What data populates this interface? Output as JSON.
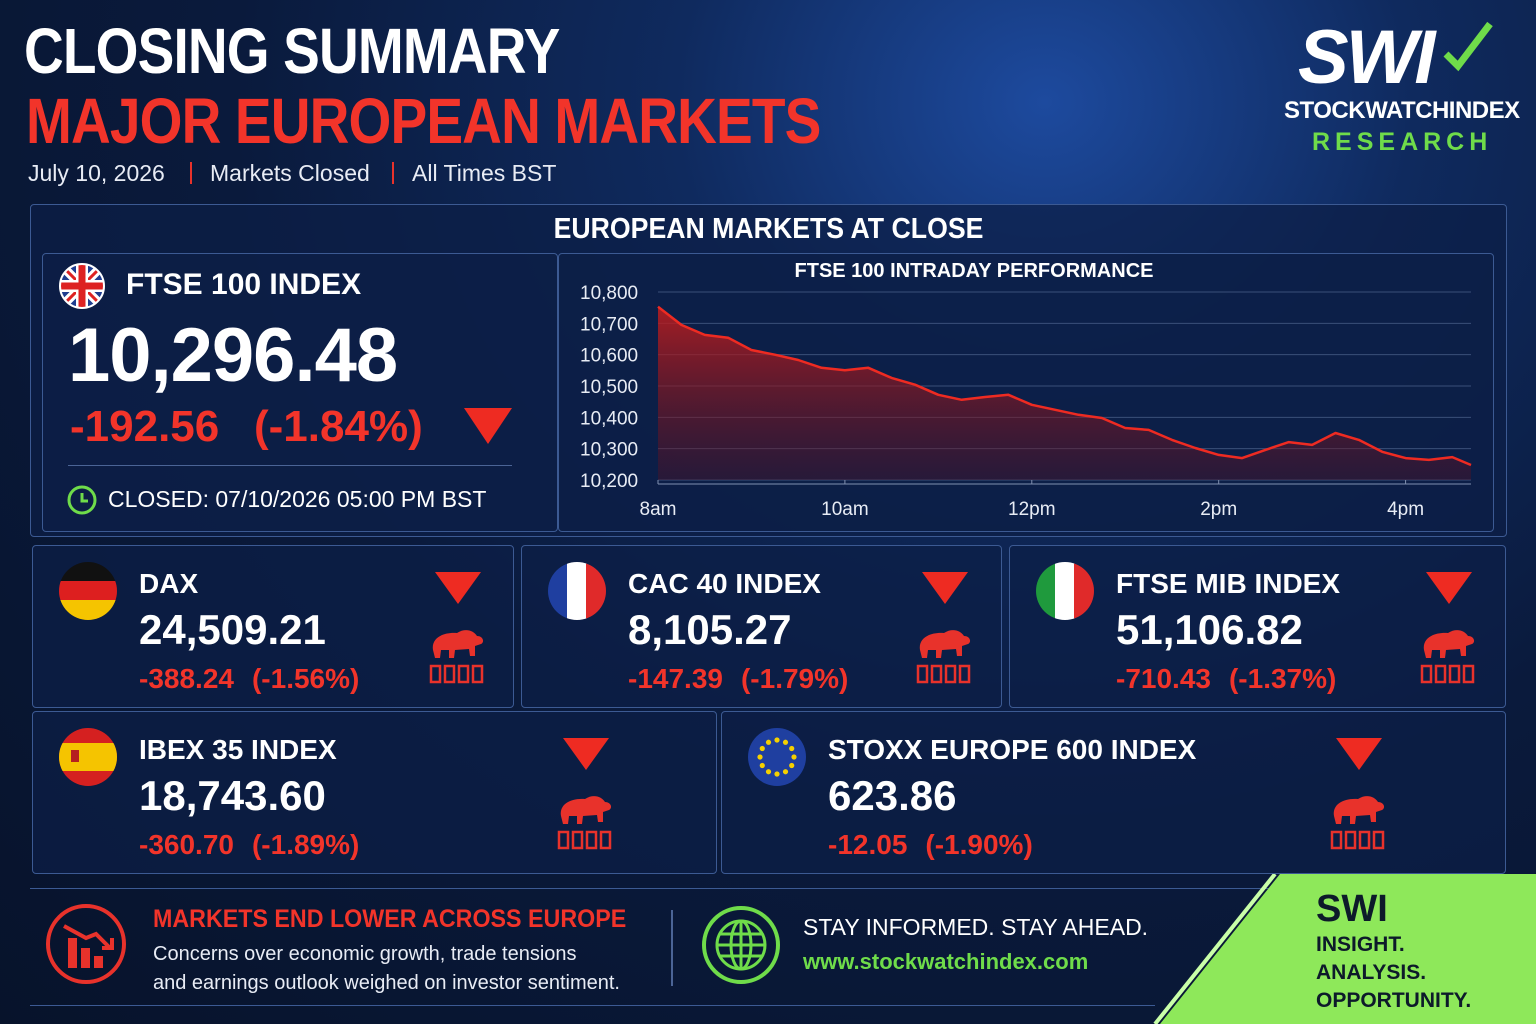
{
  "header": {
    "title": "CLOSING SUMMARY",
    "subtitle": "MAJOR EUROPEAN MARKETS",
    "meta": [
      "July 10, 2026",
      "Markets Closed",
      "All Times BST"
    ]
  },
  "logo": {
    "mark": "SWI",
    "name": "STOCKWATCHINDEX",
    "tag": "RESEARCH"
  },
  "section_title": "EUROPEAN MARKETS AT CLOSE",
  "ftse": {
    "name": "FTSE 100 INDEX",
    "value": "10,296.48",
    "change": "-192.56",
    "percent": "(-1.84%)",
    "closed": "CLOSED: 07/10/2026 05:00 PM BST"
  },
  "chart_data": {
    "type": "line",
    "title": "FTSE 100 INTRADAY PERFORMANCE",
    "color": "#ee2b22",
    "x": [
      8,
      8.25,
      8.5,
      8.75,
      9,
      9.25,
      9.5,
      9.75,
      10,
      10.25,
      10.5,
      10.75,
      11,
      11.25,
      11.5,
      11.75,
      12,
      12.25,
      12.5,
      12.75,
      13,
      13.25,
      13.5,
      13.75,
      14,
      14.25,
      14.5,
      14.75,
      15,
      15.25,
      15.5,
      15.75,
      16,
      16.25,
      16.5,
      16.7
    ],
    "values": [
      10753,
      10695,
      10663,
      10654,
      10615,
      10600,
      10583,
      10558,
      10550,
      10558,
      10526,
      10504,
      10472,
      10456,
      10465,
      10472,
      10440,
      10424,
      10408,
      10398,
      10366,
      10360,
      10328,
      10302,
      10280,
      10270,
      10296,
      10321,
      10312,
      10350,
      10328,
      10290,
      10270,
      10264,
      10273,
      10248
    ],
    "xlim": [
      8,
      16.7
    ],
    "ylim": [
      10200,
      10800
    ],
    "xticks": [
      {
        "value": 8,
        "label": "8am"
      },
      {
        "value": 10,
        "label": "10am"
      },
      {
        "value": 12,
        "label": "12pm"
      },
      {
        "value": 14,
        "label": "2pm"
      },
      {
        "value": 16,
        "label": "4pm"
      }
    ],
    "yticks": [
      {
        "value": 10200,
        "label": "10,200"
      },
      {
        "value": 10300,
        "label": "10,300"
      },
      {
        "value": 10400,
        "label": "10,400"
      },
      {
        "value": 10500,
        "label": "10,500"
      },
      {
        "value": 10600,
        "label": "10,600"
      },
      {
        "value": 10700,
        "label": "10,700"
      },
      {
        "value": 10800,
        "label": "10,800"
      }
    ],
    "grid": true
  },
  "cards": [
    {
      "name": "DAX",
      "value": "24,509.21",
      "change": "-388.24",
      "percent": "(-1.56%)"
    },
    {
      "name": "CAC 40 INDEX",
      "value": "8,105.27",
      "change": "-147.39",
      "percent": "(-1.79%)"
    },
    {
      "name": "FTSE MIB INDEX",
      "value": "51,106.82",
      "change": "-710.43",
      "percent": "(-1.37%)"
    },
    {
      "name": "IBEX 35 INDEX",
      "value": "18,743.60",
      "change": "-360.70",
      "percent": "(-1.89%)"
    },
    {
      "name": "STOXX EUROPE 600 INDEX",
      "value": "623.86",
      "change": "-12.05",
      "percent": "(-1.90%)"
    }
  ],
  "footer": {
    "headline": "MARKETS END LOWER ACROSS EUROPE",
    "body": [
      "Concerns over economic growth, trade tensions",
      "and earnings outlook weighed on investor sentiment."
    ],
    "slogan": "STAY INFORMED.  STAY AHEAD.",
    "url": "www.stockwatchindex.com"
  },
  "corner": {
    "brand": "SWI",
    "lines": [
      "INSIGHT.",
      "ANALYSIS.",
      "OPPORTUNITY."
    ]
  }
}
